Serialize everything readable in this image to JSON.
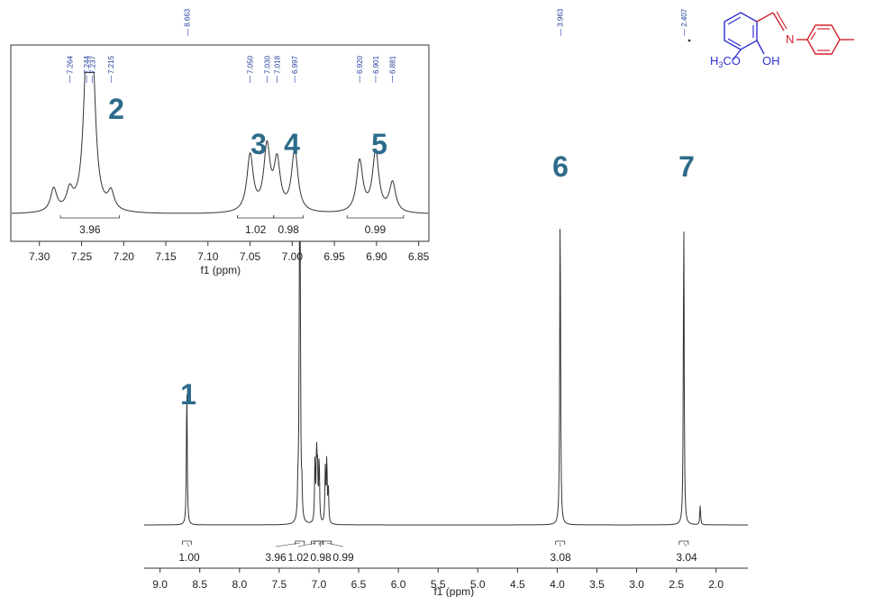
{
  "chart_data": [
    {
      "type": "line",
      "panel": "main-spectrum",
      "xlabel": "f1 (ppm)",
      "x_reversed": true,
      "xlim": [
        9.2,
        1.6
      ],
      "x_ticks": [
        "9.0",
        "8.5",
        "8.0",
        "7.5",
        "7.0",
        "6.5",
        "6.0",
        "5.5",
        "5.0",
        "4.5",
        "4.0",
        "3.5",
        "3.0",
        "2.5",
        "2.0"
      ],
      "peaks": [
        {
          "ppm": 8.663,
          "height": 0.43,
          "label": "1"
        },
        {
          "ppm": 7.264,
          "height": 0.09
        },
        {
          "ppm": 7.244,
          "height": 0.77
        },
        {
          "ppm": 7.237,
          "height": 0.75
        },
        {
          "ppm": 7.215,
          "height": 0.08
        },
        {
          "ppm": 7.05,
          "height": 0.18
        },
        {
          "ppm": 7.03,
          "height": 0.21
        },
        {
          "ppm": 7.018,
          "height": 0.16
        },
        {
          "ppm": 6.997,
          "height": 0.2
        },
        {
          "ppm": 6.92,
          "height": 0.16
        },
        {
          "ppm": 6.901,
          "height": 0.2
        },
        {
          "ppm": 6.881,
          "height": 0.1
        },
        {
          "ppm": 3.963,
          "height": 1.0,
          "label": "6"
        },
        {
          "ppm": 2.407,
          "height": 0.95,
          "label": "7"
        },
        {
          "ppm": 2.2,
          "height": 0.06
        }
      ],
      "integrals": [
        {
          "ppm": 8.663,
          "value": "1.00"
        },
        {
          "ppm": 7.24,
          "value": "3.96"
        },
        {
          "ppm": 7.04,
          "value": "1.02"
        },
        {
          "ppm": 7.0,
          "value": "0.98"
        },
        {
          "ppm": 6.9,
          "value": "0.99"
        },
        {
          "ppm": 3.963,
          "value": "3.08"
        },
        {
          "ppm": 2.407,
          "value": "3.04"
        }
      ],
      "peak_labels": [
        {
          "text": "8.663",
          "ppm": 8.663
        },
        {
          "text": "3.963",
          "ppm": 3.963
        },
        {
          "text": "2.407",
          "ppm": 2.407
        }
      ]
    },
    {
      "type": "line",
      "panel": "inset-aromatic",
      "xlabel": "f1 (ppm)",
      "x_reversed": true,
      "xlim": [
        7.32,
        6.84
      ],
      "x_ticks": [
        "7.30",
        "7.25",
        "7.20",
        "7.15",
        "7.10",
        "7.05",
        "7.00",
        "6.95",
        "6.90",
        "6.85"
      ],
      "peaks": [
        {
          "ppm": 7.283,
          "height": 0.17
        },
        {
          "ppm": 7.264,
          "height": 0.14
        },
        {
          "ppm": 7.244,
          "height": 1.0
        },
        {
          "ppm": 7.237,
          "height": 0.97
        },
        {
          "ppm": 7.215,
          "height": 0.13
        },
        {
          "ppm": 7.05,
          "height": 0.42
        },
        {
          "ppm": 7.03,
          "height": 0.47
        },
        {
          "ppm": 7.018,
          "height": 0.36
        },
        {
          "ppm": 6.997,
          "height": 0.46
        },
        {
          "ppm": 6.92,
          "height": 0.38
        },
        {
          "ppm": 6.901,
          "height": 0.45
        },
        {
          "ppm": 6.881,
          "height": 0.22
        }
      ],
      "integrals": [
        {
          "from": 7.275,
          "to": 7.205,
          "value": "3.96"
        },
        {
          "from": 7.065,
          "to": 7.022,
          "value": "1.02"
        },
        {
          "from": 7.022,
          "to": 6.987,
          "value": "0.98"
        },
        {
          "from": 6.935,
          "to": 6.868,
          "value": "0.99"
        }
      ],
      "peak_labels": [
        {
          "text": "7.264",
          "ppm": 7.264
        },
        {
          "text": "7.244",
          "ppm": 7.244
        },
        {
          "text": "7.237",
          "ppm": 7.237
        },
        {
          "text": "7.215",
          "ppm": 7.215
        },
        {
          "text": "7.050",
          "ppm": 7.05
        },
        {
          "text": "7.030",
          "ppm": 7.03
        },
        {
          "text": "7.018",
          "ppm": 7.018
        },
        {
          "text": "6.997",
          "ppm": 6.997
        },
        {
          "text": "6.920",
          "ppm": 6.92
        },
        {
          "text": "6.901",
          "ppm": 6.901
        },
        {
          "text": "6.881",
          "ppm": 6.881
        }
      ],
      "region_labels": [
        {
          "text": "2",
          "ppm": 7.21
        },
        {
          "text": "3",
          "ppm": 7.07
        },
        {
          "text": "4",
          "ppm": 7.02
        },
        {
          "text": "5",
          "ppm": 6.92
        }
      ]
    }
  ],
  "molecule": {
    "methoxy_label": "H3CO",
    "methoxy_prefix": "H",
    "methoxy_sub": "3",
    "methoxy_suffix": "CO",
    "hydroxy_label": "OH",
    "nitrogen_label": "N",
    "colors": {
      "left_ring": "#2f2fd0",
      "right_ring": "#d0242c"
    }
  },
  "colors": {
    "spectrum": "#333333",
    "peak_label": "#1f3c9c",
    "region_number": "#2d6b8a"
  }
}
